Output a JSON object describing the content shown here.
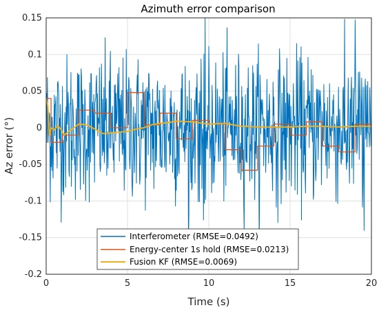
{
  "chart_data": {
    "type": "line",
    "title": "Azimuth error comparison",
    "xlabel": "Time (s)",
    "ylabel": "Az error (°)",
    "xlim": [
      0,
      20
    ],
    "ylim": [
      -0.2,
      0.15
    ],
    "xticks": [
      0,
      5,
      10,
      15,
      20
    ],
    "xtick_labels": [
      "0",
      "5",
      "10",
      "15",
      "20"
    ],
    "yticks": [
      -0.2,
      -0.15,
      -0.1,
      -0.05,
      0,
      0.05,
      0.1,
      0.15
    ],
    "ytick_labels": [
      "-0.2",
      "-0.15",
      "-0.1",
      "-0.05",
      "0",
      "0.05",
      "0.1",
      "0.15"
    ],
    "grid": true,
    "legend_position": "bottom-center",
    "series": [
      {
        "name": "Interferometer (RMSE=0.0492)",
        "color": "#0072BD",
        "style": "noise",
        "x_range": [
          0,
          20
        ],
        "rmse": 0.0492,
        "sample_dt": 0.025
      },
      {
        "name": "Energy-center 1s hold (RMSE=0.0213)",
        "color": "#D95319",
        "style": "step",
        "x": [
          0,
          0.3,
          1,
          2,
          3,
          4,
          5,
          6,
          7,
          8,
          9,
          10,
          11,
          12,
          13,
          14,
          15,
          16,
          17,
          18,
          19,
          20
        ],
        "y": [
          0.04,
          -0.02,
          -0.01,
          0.024,
          0.02,
          0.0,
          0.048,
          0.004,
          0.02,
          -0.015,
          0.01,
          0.005,
          -0.03,
          -0.058,
          -0.025,
          0.005,
          -0.01,
          0.008,
          -0.025,
          -0.033,
          0.005,
          0.005
        ]
      },
      {
        "name": "Fusion KF (RMSE=0.0069)",
        "color": "#EDB120",
        "style": "line",
        "x": [
          0,
          0.1,
          0.2,
          0.3,
          0.5,
          0.7,
          0.9,
          1.1,
          1.4,
          1.7,
          2.0,
          2.5,
          3.0,
          3.5,
          4.0,
          4.5,
          5.0,
          5.5,
          6.0,
          6.5,
          7.0,
          7.5,
          8.0,
          9.0,
          10.0,
          11.0,
          12.0,
          13.0,
          14.0,
          15.0,
          16.0,
          17.0,
          18.0,
          19.0,
          20.0
        ],
        "y": [
          0.04,
          0.03,
          -0.01,
          0.0,
          -0.003,
          0.003,
          -0.002,
          -0.01,
          -0.005,
          0.0,
          0.005,
          0.004,
          -0.002,
          -0.008,
          -0.007,
          -0.006,
          -0.005,
          -0.002,
          0.0,
          0.004,
          0.006,
          0.007,
          0.009,
          0.008,
          0.005,
          0.006,
          0.002,
          0.001,
          0.001,
          0.001,
          0.002,
          0.002,
          0.001,
          0.002,
          0.002
        ]
      }
    ]
  }
}
